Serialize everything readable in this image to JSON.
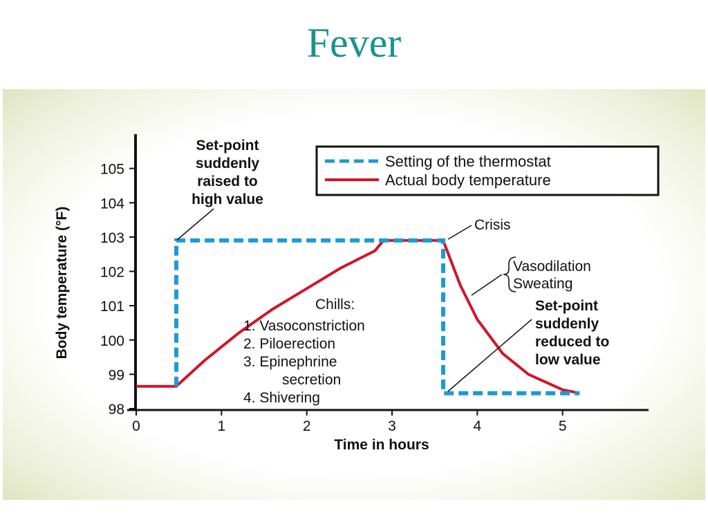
{
  "slide": {
    "title": "Fever"
  },
  "chart_data": {
    "type": "line",
    "xlabel": "Time in hours",
    "ylabel": "Body temperature (°F)",
    "xlim": [
      0,
      6
    ],
    "ylim": [
      98,
      106
    ],
    "x_ticks": [
      0,
      1,
      2,
      3,
      4,
      5
    ],
    "y_ticks": [
      98,
      99,
      100,
      101,
      102,
      103,
      104,
      105
    ],
    "series": [
      {
        "name": "Setting of the thermostat",
        "style": "dashed",
        "color": "#1c9ad6",
        "points": [
          [
            0.47,
            98.65
          ],
          [
            0.47,
            102.9
          ],
          [
            3.6,
            102.9
          ],
          [
            3.6,
            98.45
          ],
          [
            5.2,
            98.45
          ]
        ]
      },
      {
        "name": "Actual body temperature",
        "style": "solid",
        "color": "#d2142a",
        "points": [
          [
            0,
            98.65
          ],
          [
            0.47,
            98.65
          ],
          [
            0.8,
            99.4
          ],
          [
            1.2,
            100.2
          ],
          [
            1.6,
            100.9
          ],
          [
            2.0,
            101.5
          ],
          [
            2.4,
            102.1
          ],
          [
            2.8,
            102.6
          ],
          [
            2.9,
            102.9
          ],
          [
            3.6,
            102.9
          ],
          [
            3.8,
            101.6
          ],
          [
            4.0,
            100.6
          ],
          [
            4.3,
            99.6
          ],
          [
            4.6,
            99.0
          ],
          [
            5.0,
            98.55
          ],
          [
            5.2,
            98.45
          ]
        ]
      }
    ],
    "legend": {
      "placement": "top-right",
      "thermostat_label": "Setting of the thermostat",
      "actual_label": "Actual body temperature"
    },
    "annotations": {
      "raised": [
        "Set-point",
        "suddenly",
        "raised to",
        "high value"
      ],
      "crisis": "Crisis",
      "vasodilation": [
        "Vasodilation",
        "Sweating"
      ],
      "reduced": [
        "Set-point",
        "suddenly",
        "reduced to",
        "low value"
      ],
      "chills_title": "Chills:",
      "chills": [
        "1. Vasoconstriction",
        "2. Piloerection",
        "3. Epinephrine",
        "secretion",
        "4. Shivering"
      ]
    }
  }
}
